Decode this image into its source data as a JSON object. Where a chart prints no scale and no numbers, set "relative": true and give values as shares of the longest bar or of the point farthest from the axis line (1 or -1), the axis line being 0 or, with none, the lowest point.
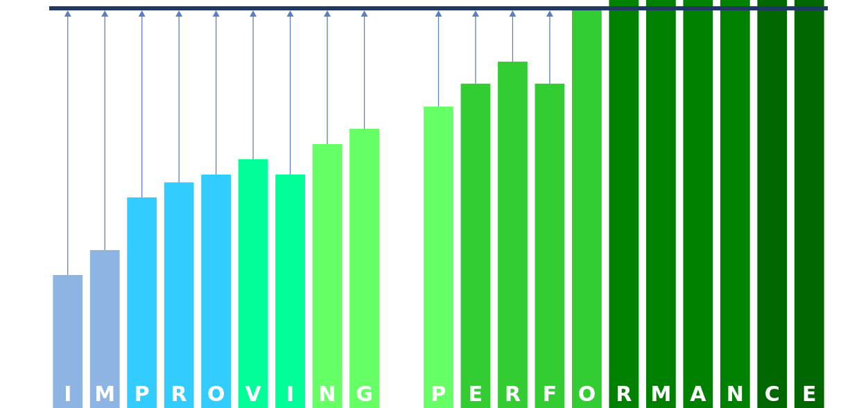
{
  "chart_data": {
    "type": "bar",
    "relative": true,
    "tick_labels": "x",
    "categories": [
      "I",
      "M",
      "P",
      "R",
      "O",
      "V",
      "I",
      "N",
      "G",
      null,
      "P",
      "E",
      "R",
      "F",
      "O",
      "R",
      "M",
      "A",
      "N",
      "C",
      "E"
    ],
    "values": [
      0.326,
      0.387,
      0.516,
      0.553,
      0.572,
      0.61,
      0.572,
      0.647,
      0.684,
      null,
      0.739,
      0.795,
      0.849,
      0.795,
      0.975,
      1,
      1,
      1,
      1,
      1,
      1
    ],
    "colors": [
      "#8eb4e3",
      "#8eb4e3",
      "#33ccff",
      "#33ccff",
      "#33ccff",
      "#00ff99",
      "#00ff99",
      "#66ff66",
      "#66ff66",
      "#66ff66",
      "#66ff66",
      "#33cc33",
      "#33cc33",
      "#33cc33",
      "#33cc33",
      "#008000",
      "#008000",
      "#008000",
      "#008000",
      "#006600",
      "#006600"
    ],
    "ref_lines": [
      {
        "axis": "y",
        "value": 0.983,
        "color": "#1f3864"
      }
    ]
  }
}
